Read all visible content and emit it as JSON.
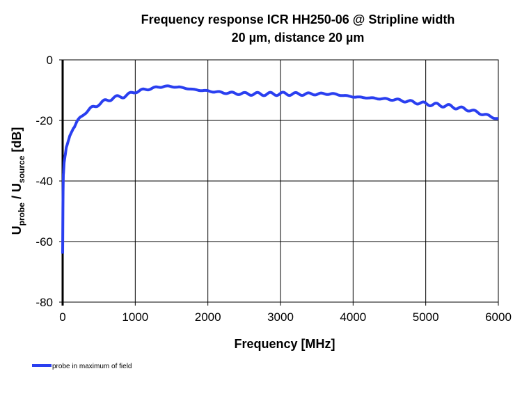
{
  "chart_data": {
    "type": "line",
    "title_line1": "Frequency response ICR HH250-06 @ Stripline  width",
    "title_line2": "20 µm, distance 20 µm",
    "xlabel": "Frequency [MHz]",
    "ylabel_main": "U",
    "ylabel_sub1": "probe",
    "ylabel_mid": " / U",
    "ylabel_sub2": "source",
    "ylabel_end": " [dB]",
    "xlim": [
      0,
      6000
    ],
    "ylim": [
      -80,
      0
    ],
    "xticks": [
      0,
      1000,
      2000,
      3000,
      4000,
      5000,
      6000
    ],
    "yticks": [
      0,
      -20,
      -40,
      -60,
      -80
    ],
    "grid": true,
    "legend_position": "bottom-left",
    "series": [
      {
        "name": "probe in maximum of field",
        "color": "#2a3ff0",
        "x": [
          0,
          5,
          10,
          20,
          35,
          50,
          75,
          100,
          150,
          200,
          300,
          400,
          500,
          600,
          700,
          850,
          1000,
          1200,
          1400,
          1600,
          1800,
          2000,
          2200,
          2500,
          2800,
          3000,
          3300,
          3700,
          4000,
          4300,
          4600,
          5000,
          5300,
          5600,
          5800,
          6000
        ],
        "y": [
          -64,
          -45,
          -38,
          -34,
          -31.5,
          -29,
          -27,
          -25,
          -22.5,
          -20.5,
          -17.5,
          -16,
          -14.5,
          -13.5,
          -12.5,
          -12,
          -10.5,
          -9.5,
          -8.7,
          -9,
          -9.8,
          -10.3,
          -10.8,
          -11.2,
          -11.3,
          -11.2,
          -11.3,
          -11.2,
          -12.2,
          -12.7,
          -13.2,
          -14.5,
          -15.2,
          -16.5,
          -18,
          -19.5
        ]
      }
    ]
  }
}
